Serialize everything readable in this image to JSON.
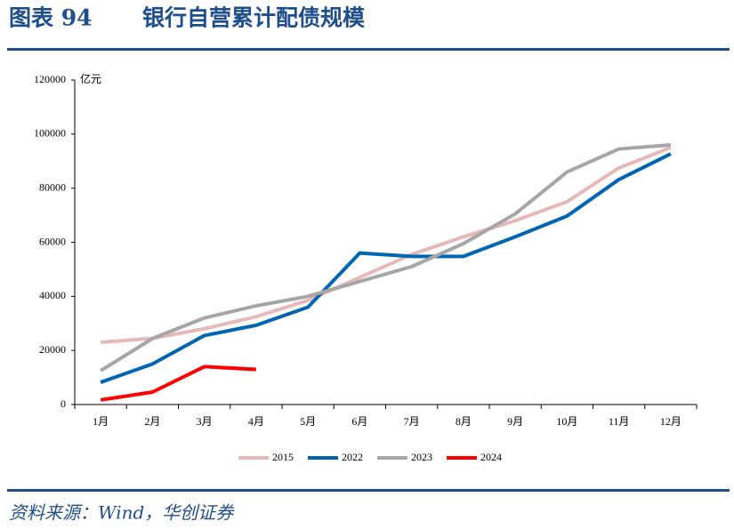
{
  "chart_data": {
    "type": "line",
    "title_label": "图表 94",
    "title": "银行自营累计配债规模",
    "y_label": "亿元",
    "source": "资料来源：Wind，华创证券",
    "categories": [
      "1月",
      "2月",
      "3月",
      "4月",
      "5月",
      "6月",
      "7月",
      "8月",
      "9月",
      "10月",
      "11月",
      "12月"
    ],
    "series": [
      {
        "name": "2015",
        "color": "#e6b8b7",
        "values": [
          23000,
          24500,
          28000,
          32500,
          38500,
          47000,
          55500,
          62000,
          68000,
          75000,
          87500,
          95000
        ]
      },
      {
        "name": "2022",
        "color": "#0066b3",
        "values": [
          8200,
          15000,
          25500,
          29300,
          36000,
          56000,
          54800,
          54800,
          62000,
          69700,
          83200,
          92700
        ]
      },
      {
        "name": "2023",
        "color": "#a6a6a6",
        "values": [
          12500,
          24400,
          32000,
          36500,
          40000,
          45500,
          51000,
          59500,
          70500,
          86000,
          94500,
          96000
        ]
      },
      {
        "name": "2024",
        "color": "#ff0000",
        "values": [
          1700,
          4600,
          14000,
          13000,
          null,
          null,
          null,
          null,
          null,
          null,
          null,
          null
        ]
      }
    ],
    "ylim": [
      0,
      120000
    ],
    "yticks": [
      0,
      20000,
      40000,
      60000,
      80000,
      100000,
      120000
    ]
  }
}
